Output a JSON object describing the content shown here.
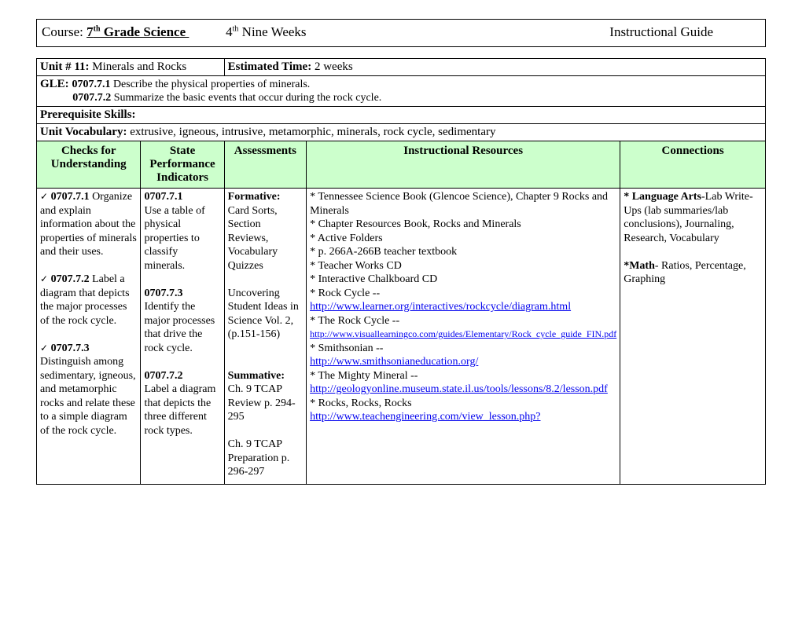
{
  "header": {
    "course_label": "Course: ",
    "course_value": "7",
    "course_suffix": " Grade Science ",
    "period_value": "4",
    "period_suffix": " Nine Weeks",
    "right": "Instructional Guide"
  },
  "info": {
    "unit_label": "Unit # 11: ",
    "unit_value": "Minerals and Rocks",
    "time_label": "Estimated Time:  ",
    "time_value": "2 weeks",
    "gle_label": "GLE:  ",
    "gle_code1": "0707.7.1 ",
    "gle_text1": "Describe the physical properties of minerals.",
    "gle_code2": "0707.7.2 ",
    "gle_text2": "Summarize the basic events that occur during the rock cycle.",
    "prereq_label": "Prerequisite Skills:",
    "vocab_label": "Unit Vocabulary: ",
    "vocab_value": "extrusive, igneous, intrusive, metamorphic, minerals, rock cycle, sedimentary"
  },
  "columns": {
    "c1": "Checks for Understanding",
    "c2": "State Performance Indicators",
    "c3": "Assessments",
    "c4": "Instructional Resources",
    "c5": "Connections"
  },
  "col_widths": {
    "c1": "17%",
    "c2": "13%",
    "c3": "13%",
    "c4": "29%",
    "c5": "28%"
  },
  "checks": {
    "i1_code": "0707.7.1",
    "i1_text": "  Organize and explain information about the properties of minerals and their uses.",
    "i2_code": "0707.7.2",
    "i2_text": "  Label a diagram that depicts the major processes of the rock cycle.",
    "i3_code": "0707.7.3",
    "i3_text": "  Distinguish among sedimentary, igneous, and metamorphic rocks and relate these to a simple diagram of the rock cycle."
  },
  "spi": {
    "s1_code": "0707.7.1",
    "s1_text": "Use a table of physical properties to classify minerals.",
    "s2_code": "0707.7.3",
    "s2_text": "Identify the major processes that drive the rock cycle.",
    "s3_code": "0707.7.2",
    "s3_text": "Label a diagram that depicts the three different rock types."
  },
  "assess": {
    "form_label": "Formative:",
    "form_text1": "Card Sorts, Section Reviews, Vocabulary Quizzes",
    "form_text2": "Uncovering Student Ideas in Science Vol. 2, (p.151-156)",
    "summ_label": "Summative:",
    "summ_text1": "Ch. 9 TCAP Review p. 294-295",
    "summ_text2": "Ch. 9 TCAP Preparation p. 296-297"
  },
  "resources": {
    "r1": "* Tennessee Science Book (Glencoe Science), Chapter 9 Rocks and Minerals",
    "r2": "* Chapter Resources Book, Rocks and Minerals",
    "r3": "* Active Folders",
    "r4": "* p. 266A-266B teacher textbook",
    "r5": "* Teacher Works CD",
    "r6": "* Interactive Chalkboard CD",
    "r7_label": "* Rock Cycle -- ",
    "r7_link": "http://www.learner.org/interactives/rockcycle/diagram.html",
    "r8_label": "* The Rock Cycle -- ",
    "r8_link": "http://www.visuallearningco.com/guides/Elementary/Rock_cycle_guide_FIN.pdf",
    "r9_label": "* Smithsonian -- ",
    "r9_link": "http://www.smithsonianeducation.org/",
    "r10_label": "* The Mighty Mineral -- ",
    "r10_link": "http://geologyonline.museum.state.il.us/tools/lessons/8.2/lesson.pdf",
    "r11_label": "* Rocks, Rocks, Rocks ",
    "r11_link": "http://www.teachengineering.com/view_lesson.php?"
  },
  "connections": {
    "la_label": "* Language Arts",
    "la_text": "-Lab Write-Ups (lab summaries/lab conclusions), Journaling, Research, Vocabulary",
    "math_label": "*Math",
    "math_text": "- Ratios, Percentage, Graphing"
  },
  "colors": {
    "header_bg": "#ccffcc",
    "link": "#0000ee"
  }
}
